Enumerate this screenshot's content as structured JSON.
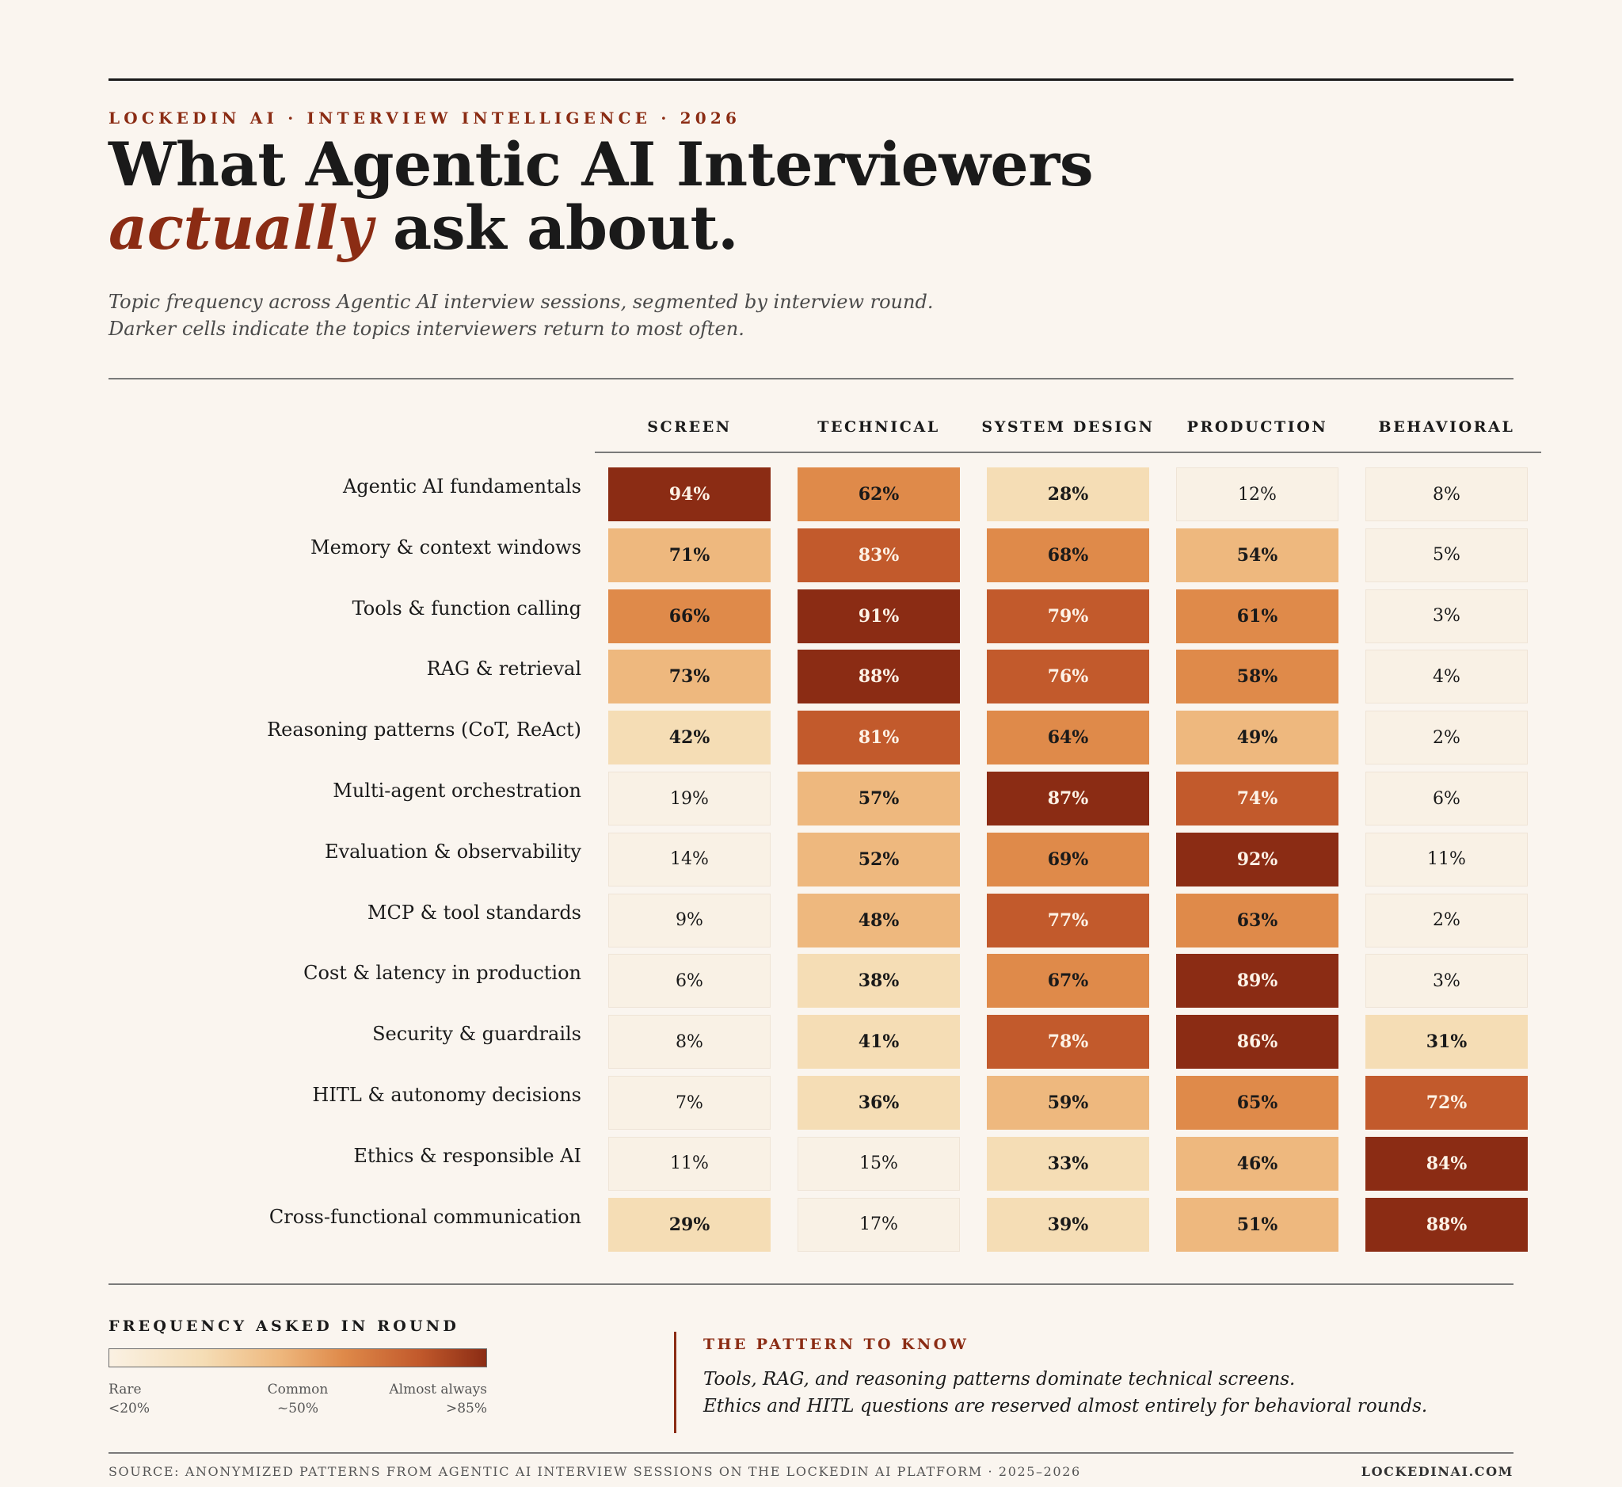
{
  "header": {
    "eyebrow": "LOCKEDIN AI · INTERVIEW INTELLIGENCE · 2026",
    "title_line1": "What Agentic AI Interviewers",
    "title_accent": "actually",
    "title_rest": " ask about.",
    "subtitle_line1": "Topic frequency across Agentic AI interview sessions, segmented by interview round.",
    "subtitle_line2": "Darker cells indicate the topics interviewers return to most often."
  },
  "colors": {
    "accent": "#8b2c14",
    "levels": [
      "#f9f1e5",
      "#f5ddb5",
      "#eeb87e",
      "#df8a4a",
      "#c25a2c",
      "#8b2c14"
    ]
  },
  "chart_data": {
    "type": "heatmap",
    "title": "What Agentic AI Interviewers actually ask about.",
    "value_unit": "%",
    "columns": [
      "SCREEN",
      "TECHNICAL",
      "SYSTEM DESIGN",
      "PRODUCTION",
      "BEHAVIORAL"
    ],
    "rows": [
      "Agentic AI fundamentals",
      "Memory & context windows",
      "Tools & function calling",
      "RAG & retrieval",
      "Reasoning patterns (CoT, ReAct)",
      "Multi-agent orchestration",
      "Evaluation & observability",
      "MCP & tool standards",
      "Cost & latency in production",
      "Security & guardrails",
      "HITL & autonomy decisions",
      "Ethics & responsible AI",
      "Cross-functional communication"
    ],
    "values": [
      [
        94,
        62,
        28,
        12,
        8
      ],
      [
        71,
        83,
        68,
        54,
        5
      ],
      [
        66,
        91,
        79,
        61,
        3
      ],
      [
        73,
        88,
        76,
        58,
        4
      ],
      [
        42,
        81,
        64,
        49,
        2
      ],
      [
        19,
        57,
        87,
        74,
        6
      ],
      [
        14,
        52,
        69,
        92,
        11
      ],
      [
        9,
        48,
        77,
        63,
        2
      ],
      [
        6,
        38,
        67,
        89,
        3
      ],
      [
        8,
        41,
        78,
        86,
        31
      ],
      [
        7,
        36,
        59,
        65,
        72
      ],
      [
        11,
        15,
        33,
        46,
        84
      ],
      [
        29,
        17,
        39,
        51,
        88
      ]
    ],
    "color_levels": [
      [
        5,
        3,
        1,
        0,
        0
      ],
      [
        2,
        4,
        3,
        2,
        0
      ],
      [
        3,
        5,
        4,
        3,
        0
      ],
      [
        2,
        5,
        4,
        3,
        0
      ],
      [
        1,
        4,
        3,
        2,
        0
      ],
      [
        0,
        2,
        5,
        4,
        0
      ],
      [
        0,
        2,
        3,
        5,
        0
      ],
      [
        0,
        2,
        4,
        3,
        0
      ],
      [
        0,
        1,
        3,
        5,
        0
      ],
      [
        0,
        1,
        4,
        5,
        1
      ],
      [
        0,
        1,
        2,
        3,
        4
      ],
      [
        0,
        0,
        1,
        2,
        5
      ],
      [
        1,
        0,
        1,
        2,
        5
      ]
    ],
    "legend": {
      "title": "FREQUENCY ASKED IN ROUND",
      "stops": [
        {
          "label": "Rare",
          "value": "<20%"
        },
        {
          "label": "Common",
          "value": "~50%"
        },
        {
          "label": "Almost always",
          "value": ">85%"
        }
      ]
    }
  },
  "callout": {
    "title": "THE PATTERN TO KNOW",
    "line1": "Tools, RAG, and reasoning patterns dominate technical screens.",
    "line2": "Ethics and HITL questions are reserved almost entirely for behavioral rounds."
  },
  "footer": {
    "source": "SOURCE: ANONYMIZED PATTERNS FROM AGENTIC AI INTERVIEW SESSIONS ON THE LOCKEDIN AI PLATFORM · 2025–2026",
    "brand": "LOCKEDINAI.COM"
  }
}
